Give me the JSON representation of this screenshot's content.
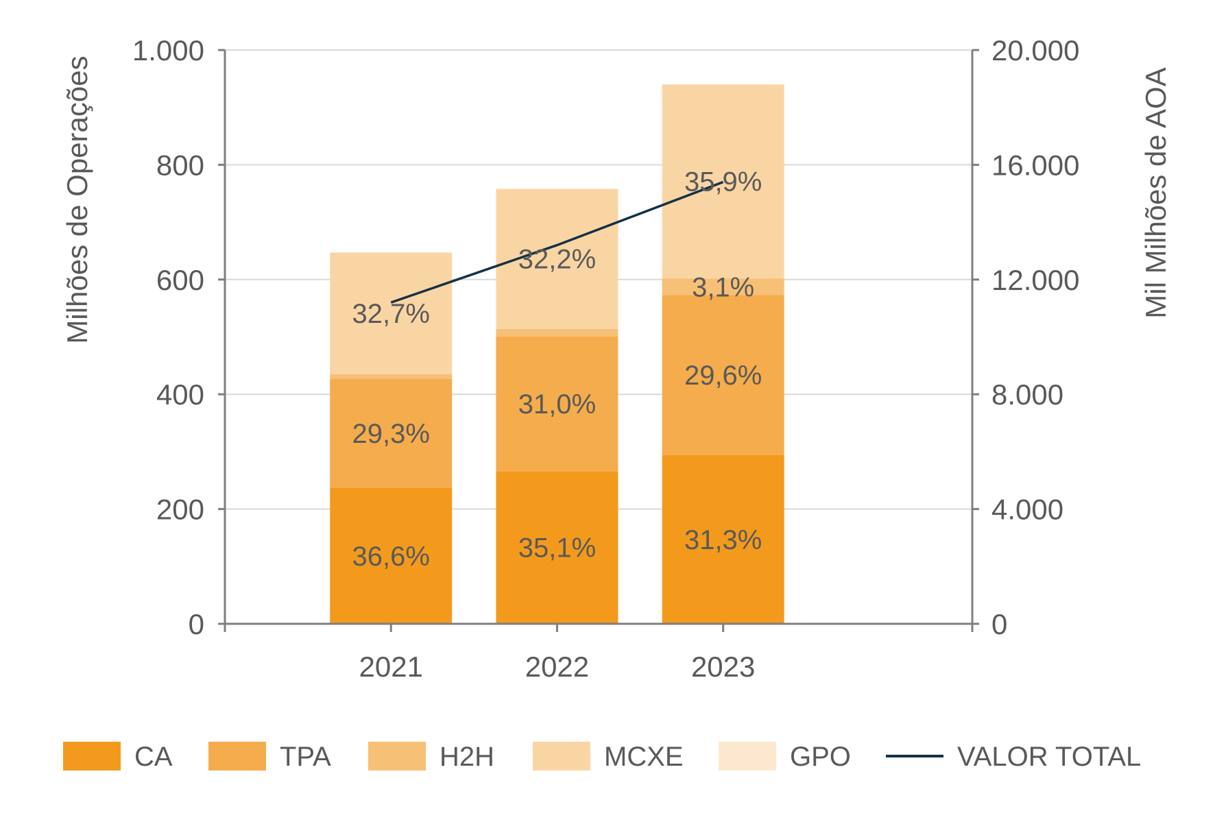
{
  "chart_data": {
    "type": "bar",
    "stacked": true,
    "categories": [
      "2021",
      "2022",
      "2023"
    ],
    "series": [
      {
        "name": "CA",
        "color": "#F39A1D",
        "values": [
          237,
          266,
          294
        ],
        "labels": [
          "36,6%",
          "35,1%",
          "31,3%"
        ]
      },
      {
        "name": "TPA",
        "color": "#F5AC4C",
        "values": [
          190,
          235,
          279
        ],
        "labels": [
          "29,3%",
          "31,0%",
          "29,6%"
        ]
      },
      {
        "name": "H2H",
        "color": "#F7C077",
        "values": [
          8,
          13,
          29
        ],
        "labels": [
          "",
          "",
          "3,1%"
        ]
      },
      {
        "name": "MCXE",
        "color": "#FAD5A4",
        "values": [
          212,
          244,
          338
        ],
        "labels": [
          "32,7%",
          "32,2%",
          "35,9%"
        ]
      },
      {
        "name": "GPO",
        "color": "#FCE8CF",
        "values": [
          0,
          0,
          0
        ],
        "labels": [
          "",
          "",
          ""
        ]
      }
    ],
    "line_series": {
      "name": "VALOR TOTAL",
      "color": "#123247",
      "axis": "right",
      "values": [
        11200,
        13200,
        15400
      ]
    },
    "ylabel": "Milhões de Operações",
    "y2label": "Mil Milhões de AOA",
    "ylim": [
      0,
      1000
    ],
    "y2lim": [
      0,
      20000
    ],
    "yticks": [
      0,
      200,
      400,
      600,
      800,
      1000
    ],
    "yticklabels": [
      "0",
      "200",
      "400",
      "600",
      "800",
      "1.000"
    ],
    "y2ticks": [
      0,
      4000,
      8000,
      12000,
      16000,
      20000
    ],
    "y2ticklabels": [
      "0",
      "4.000",
      "8.000",
      "12.000",
      "16.000",
      "20.000"
    ],
    "grid": true,
    "legend_position": "bottom",
    "legend": [
      {
        "label": "CA",
        "kind": "box",
        "color": "#F39A1D"
      },
      {
        "label": "TPA",
        "kind": "box",
        "color": "#F5AC4C"
      },
      {
        "label": "H2H",
        "kind": "box",
        "color": "#F7C077"
      },
      {
        "label": "MCXE",
        "kind": "box",
        "color": "#FAD5A4"
      },
      {
        "label": "GPO",
        "kind": "box",
        "color": "#FCE8CF"
      },
      {
        "label": "VALOR TOTAL",
        "kind": "line",
        "color": "#123247"
      }
    ]
  }
}
